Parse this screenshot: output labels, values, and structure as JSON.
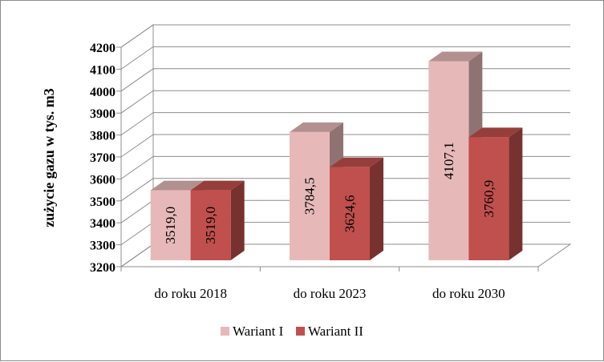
{
  "chart_data": {
    "type": "bar",
    "title": "",
    "xlabel": "",
    "ylabel": "zużycie gazu w tys. m3",
    "categories": [
      "do roku 2018",
      "do roku 2023",
      "do roku 2030"
    ],
    "series": [
      {
        "name": "Wariant I",
        "values": [
          3519.0,
          3784.5,
          4107.1
        ],
        "labels": [
          "3519,0",
          "3784,5",
          "4107,1"
        ],
        "color": "#e6b9b8"
      },
      {
        "name": "Wariant II",
        "values": [
          3519.0,
          3624.6,
          3760.9
        ],
        "labels": [
          "3519,0",
          "3624,6",
          "3760,9"
        ],
        "color": "#c0504d"
      }
    ],
    "ylim": [
      3200,
      4200
    ],
    "yticks": [
      3200,
      3300,
      3400,
      3500,
      3600,
      3700,
      3800,
      3900,
      4000,
      4100,
      4200
    ],
    "grid": true,
    "legend": "bottom",
    "style": "3d-clustered-column"
  }
}
